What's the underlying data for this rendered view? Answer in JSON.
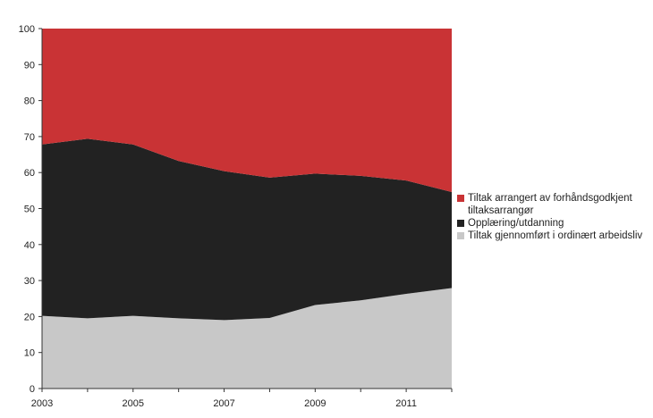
{
  "chart_data": {
    "type": "area",
    "stacked": true,
    "x": [
      2003,
      2004,
      2005,
      2006,
      2007,
      2008,
      2009,
      2010,
      2011,
      2012
    ],
    "x_tick_labels": [
      "2003",
      "2005",
      "2007",
      "2009",
      "2011"
    ],
    "y_tick_labels": [
      "0",
      "10",
      "20",
      "30",
      "40",
      "50",
      "60",
      "70",
      "80",
      "90",
      "100"
    ],
    "ylim": [
      0,
      100
    ],
    "grid": false,
    "legend_position": "right",
    "series": [
      {
        "name": "Tiltak gjennomført i ordinært arbeidsliv",
        "color": "#c8c8c8",
        "values": [
          20.2,
          19.5,
          20.2,
          19.5,
          19.0,
          19.6,
          23.2,
          24.5,
          26.3,
          27.9
        ]
      },
      {
        "name": "Opplæring/utdanning",
        "color": "#222222",
        "values": [
          47.6,
          49.9,
          47.6,
          43.7,
          41.4,
          39.0,
          36.5,
          34.6,
          31.5,
          26.7
        ]
      },
      {
        "name": "Tiltak arrangert av forhåndsgodkjent tiltaksarrangør",
        "color": "#c93335",
        "values": [
          32.2,
          30.6,
          32.2,
          36.8,
          39.6,
          41.4,
          40.3,
          40.9,
          42.2,
          45.4
        ]
      }
    ],
    "legend_order": [
      2,
      1,
      0
    ]
  }
}
